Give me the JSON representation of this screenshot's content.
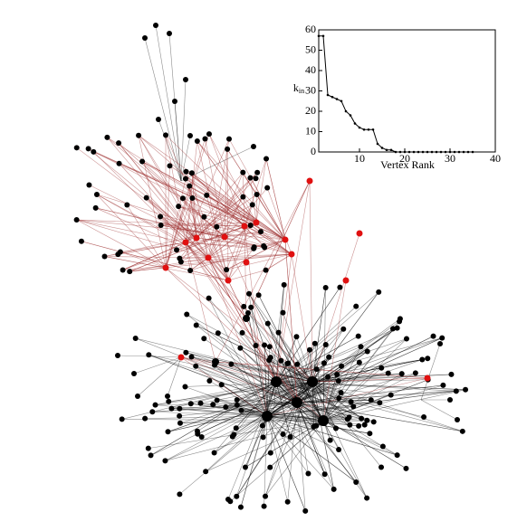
{
  "chart_data": {
    "type": "line",
    "xlabel": "Vertex Rank",
    "ylabel": {
      "base": "k",
      "sub": "in"
    },
    "x": [
      1,
      2,
      3,
      4,
      5,
      6,
      7,
      8,
      9,
      10,
      11,
      12,
      13,
      14,
      15,
      16,
      17,
      18,
      19,
      20,
      21,
      22,
      23,
      24,
      25,
      26,
      27,
      28,
      29,
      30,
      31,
      32,
      33,
      34,
      35
    ],
    "values": [
      57,
      57,
      28,
      27,
      26,
      25,
      20,
      18,
      14,
      12,
      11,
      11,
      11,
      4,
      2,
      1,
      1,
      0,
      0,
      0,
      0,
      0,
      0,
      0,
      0,
      0,
      0,
      0,
      0,
      0,
      0,
      0,
      0,
      0,
      0
    ],
    "color": "#000000",
    "xlim": [
      1,
      40
    ],
    "xticks": [
      10,
      20,
      30,
      40
    ],
    "ylim": [
      0,
      60
    ],
    "yticks": [
      0,
      10,
      20,
      30,
      40,
      50,
      60
    ]
  }
}
